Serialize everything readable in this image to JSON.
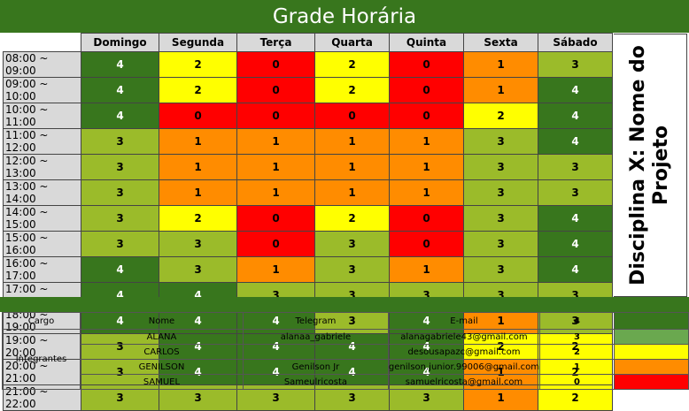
{
  "title": "Grade Horária",
  "days": [
    "Domingo",
    "Segunda",
    "Terça",
    "Quarta",
    "Quinta",
    "Sexta",
    "Sábado"
  ],
  "schedule": [
    {
      "time": "08:00 ~ 09:00",
      "values": [
        "4",
        "2",
        "0",
        "2",
        "0",
        "1",
        "3"
      ]
    },
    {
      "time": "09:00 ~ 10:00",
      "values": [
        "4",
        "2",
        "0",
        "2",
        "0",
        "1",
        "4"
      ]
    },
    {
      "time": "10:00 ~ 11:00",
      "values": [
        "4",
        "0",
        "0",
        "0",
        "0",
        "2",
        "4"
      ]
    },
    {
      "time": "11:00 ~ 12:00",
      "values": [
        "3",
        "1",
        "1",
        "1",
        "1",
        "3",
        "4"
      ]
    },
    {
      "time": "12:00 ~ 13:00",
      "values": [
        "3",
        "1",
        "1",
        "1",
        "1",
        "3",
        "3"
      ]
    },
    {
      "time": "13:00 ~ 14:00",
      "values": [
        "3",
        "1",
        "1",
        "1",
        "1",
        "3",
        "3"
      ]
    },
    {
      "time": "14:00 ~ 15:00",
      "values": [
        "3",
        "2",
        "0",
        "2",
        "0",
        "3",
        "4"
      ]
    },
    {
      "time": "15:00 ~ 16:00",
      "values": [
        "3",
        "3",
        "0",
        "3",
        "0",
        "3",
        "4"
      ]
    },
    {
      "time": "16:00 ~ 17:00",
      "values": [
        "4",
        "3",
        "1",
        "3",
        "1",
        "3",
        "4"
      ]
    },
    {
      "time": "17:00 ~ 18:00",
      "values": [
        "4",
        "4",
        "3",
        "3",
        "3",
        "3",
        "3"
      ]
    },
    {
      "time": "18:00 ~ 19:00",
      "values": [
        "4",
        "4",
        "4",
        "3",
        "4",
        "1",
        "3"
      ]
    },
    {
      "time": "19:00 ~ 20:00",
      "values": [
        "3",
        "4",
        "4",
        "4",
        "4",
        "2",
        "2"
      ]
    },
    {
      "time": "20:00 ~ 21:00",
      "values": [
        "3",
        "4",
        "4",
        "4",
        "4",
        "1",
        "2"
      ]
    },
    {
      "time": "21:00 ~ 22:00",
      "values": [
        "3",
        "3",
        "3",
        "3",
        "3",
        "1",
        "2"
      ]
    }
  ],
  "side_label_line1": "Disciplina X: Nome do",
  "side_label_line2": "Projeto",
  "members_header": {
    "cargo": "Cargo",
    "nome": "Nome",
    "telegram": "Telegram",
    "email": "E-mail"
  },
  "cargo_label": "Integrantes",
  "members": [
    {
      "nome": "ALANA",
      "telegram": "alanaa_gabriele",
      "email": "alanagabriele43@gmail.com"
    },
    {
      "nome": "CARLOS",
      "telegram": "",
      "email": "desousapazc@gmail.com"
    },
    {
      "nome": "GENILSON",
      "telegram": "Genilson Jr",
      "email": "genilson.junior.99006@gmail.com"
    },
    {
      "nome": "SAMUEL",
      "telegram": "Sameulricosta",
      "email": "samuelricosta@gmail.com"
    }
  ],
  "legend": [
    {
      "value": "4",
      "color": "#38761d"
    },
    {
      "value": "3",
      "color": "#6aa84f"
    },
    {
      "value": "2",
      "color": "#ffff00"
    },
    {
      "value": "1",
      "color": "#ff8c00"
    },
    {
      "value": "0",
      "color": "#ff0000"
    }
  ]
}
